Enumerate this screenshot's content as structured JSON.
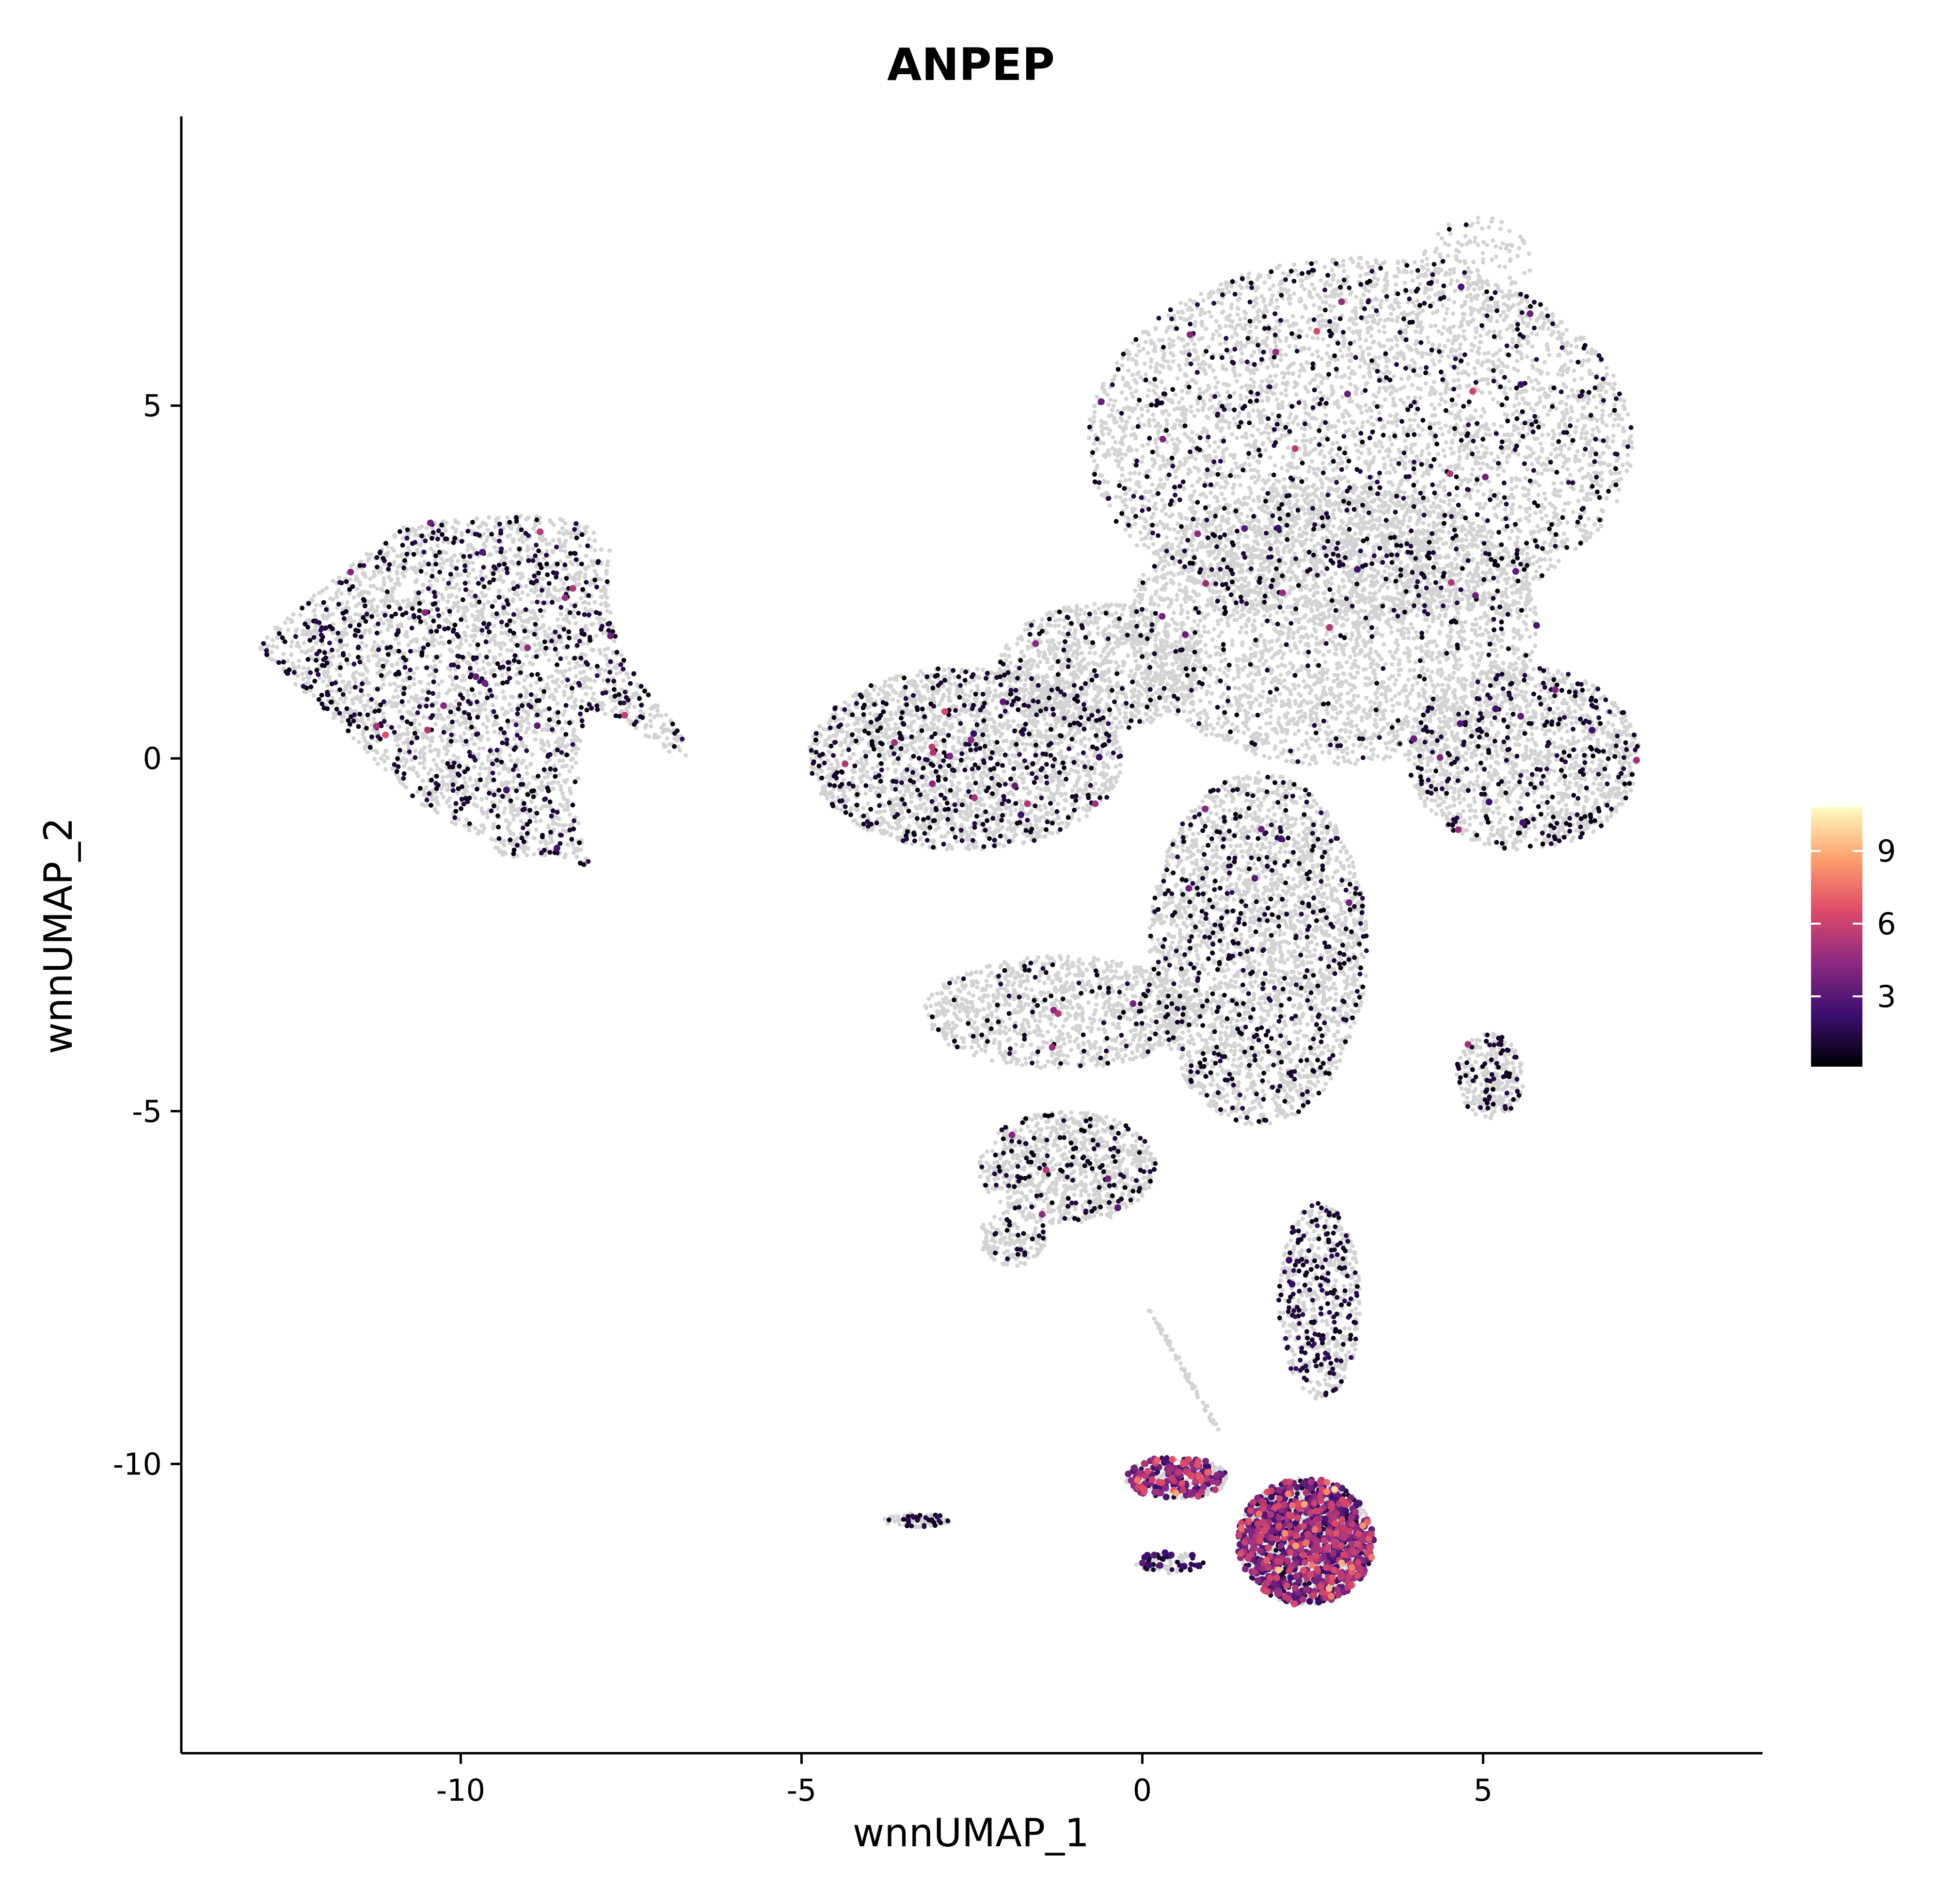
{
  "chart_data": {
    "type": "scatter",
    "title": "ANPEP",
    "xlabel": "wnnUMAP_1",
    "ylabel": "wnnUMAP_2",
    "xlim": [
      -14.1,
      9.1
    ],
    "ylim": [
      -14.1,
      9.1
    ],
    "x_ticks": [
      -10,
      -5,
      0,
      5
    ],
    "y_ticks": [
      -10,
      -5,
      0,
      5
    ],
    "x_tick_labels": [
      "-10",
      "-5",
      "0",
      "5"
    ],
    "y_tick_labels": [
      "-10",
      "-5",
      "0",
      "5"
    ],
    "grid": false,
    "background_color": "#d3d3d3",
    "colorbar": {
      "placement": "right",
      "ticks": [
        3,
        6,
        9
      ],
      "tick_labels": [
        "3",
        "6",
        "9"
      ],
      "range": [
        0.1,
        10.8
      ],
      "colors": [
        "#000004",
        "#3b0f70",
        "#8c2981",
        "#de4968",
        "#fe9f6d",
        "#fcfdbf"
      ]
    },
    "clusters": [
      {
        "name": "left-island",
        "shape": "polygon",
        "polygon": [
          [
            -13.0,
            1.6
          ],
          [
            -12.2,
            2.3
          ],
          [
            -11.4,
            2.9
          ],
          [
            -10.8,
            3.3
          ],
          [
            -10.0,
            3.4
          ],
          [
            -9.0,
            3.45
          ],
          [
            -8.2,
            3.35
          ],
          [
            -7.8,
            3.0
          ],
          [
            -7.85,
            2.3
          ],
          [
            -7.7,
            1.6
          ],
          [
            -7.3,
            1.0
          ],
          [
            -6.8,
            0.4
          ],
          [
            -6.5,
            -0.1
          ],
          [
            -7.0,
            0.1
          ],
          [
            -7.7,
            0.6
          ],
          [
            -8.2,
            0.6
          ],
          [
            -8.3,
            -0.7
          ],
          [
            -8.2,
            -1.3
          ],
          [
            -8.0,
            -1.6
          ],
          [
            -8.6,
            -1.4
          ],
          [
            -9.4,
            -1.4
          ],
          [
            -9.7,
            -1.1
          ],
          [
            -10.4,
            -0.8
          ],
          [
            -11.2,
            -0.1
          ],
          [
            -11.8,
            0.5
          ],
          [
            -12.6,
            1.2
          ]
        ],
        "count": 2600,
        "expressed_count": 720,
        "expr_mean": 1.0
      },
      {
        "name": "right-top-mass",
        "shape": "ellipse",
        "cx": 3.2,
        "cy": 4.5,
        "rx": 4.0,
        "ry": 2.6,
        "count": 4200,
        "expressed_count": 600,
        "expr_mean": 0.9
      },
      {
        "name": "top-peak",
        "shape": "ellipse",
        "cx": 4.9,
        "cy": 7.0,
        "rx": 0.8,
        "ry": 0.7,
        "count": 120,
        "expressed_count": 8,
        "expr_mean": 0.9
      },
      {
        "name": "upper-body",
        "shape": "ellipse",
        "cx": 2.8,
        "cy": 1.9,
        "rx": 3.0,
        "ry": 2.0,
        "count": 3000,
        "expressed_count": 200,
        "expr_mean": 0.8
      },
      {
        "name": "right-lobe",
        "shape": "ellipse",
        "cx": 5.6,
        "cy": 0.0,
        "rx": 1.7,
        "ry": 1.3,
        "count": 1300,
        "expressed_count": 260,
        "expr_mean": 0.9
      },
      {
        "name": "left-wing",
        "shape": "ellipse",
        "cx": -2.6,
        "cy": 0.0,
        "rx": 2.3,
        "ry": 1.3,
        "count": 2000,
        "expressed_count": 420,
        "expr_mean": 0.9
      },
      {
        "name": "bridge",
        "shape": "ellipse",
        "cx": -0.6,
        "cy": 1.3,
        "rx": 1.5,
        "ry": 0.9,
        "count": 900,
        "expressed_count": 80,
        "expr_mean": 0.8
      },
      {
        "name": "center-stem",
        "shape": "ellipse",
        "cx": 1.7,
        "cy": -2.7,
        "rx": 1.6,
        "ry": 2.5,
        "count": 2500,
        "expressed_count": 420,
        "expr_mean": 0.9
      },
      {
        "name": "left-stalk-upper",
        "shape": "ellipse",
        "cx": -1.2,
        "cy": -3.6,
        "rx": 2.0,
        "ry": 0.8,
        "count": 1000,
        "expressed_count": 90,
        "expr_mean": 0.8
      },
      {
        "name": "left-stalk-lower",
        "shape": "ellipse",
        "cx": -1.1,
        "cy": -5.8,
        "rx": 1.3,
        "ry": 0.8,
        "count": 800,
        "expressed_count": 130,
        "expr_mean": 0.8
      },
      {
        "name": "stalk-tip",
        "shape": "ellipse",
        "cx": -1.9,
        "cy": -6.8,
        "rx": 0.5,
        "ry": 0.4,
        "count": 150,
        "expressed_count": 20,
        "expr_mean": 0.8
      },
      {
        "name": "small-right-cluster",
        "shape": "ellipse",
        "cx": 5.1,
        "cy": -4.5,
        "rx": 0.5,
        "ry": 0.6,
        "count": 250,
        "expressed_count": 60,
        "expr_mean": 0.9
      },
      {
        "name": "lower-stem",
        "shape": "ellipse",
        "cx": 2.6,
        "cy": -7.7,
        "rx": 0.6,
        "ry": 1.4,
        "count": 500,
        "expressed_count": 180,
        "expr_mean": 1.2
      },
      {
        "name": "bottom-cluster",
        "shape": "ellipse",
        "cx": 2.4,
        "cy": -11.1,
        "rx": 1.0,
        "ry": 0.9,
        "count": 1300,
        "expressed_count": 1000,
        "expr_mean": 3.0
      },
      {
        "name": "bottom-left-arm",
        "shape": "ellipse",
        "cx": 0.5,
        "cy": -10.2,
        "rx": 0.75,
        "ry": 0.3,
        "count": 250,
        "expressed_count": 180,
        "expr_mean": 3.2
      },
      {
        "name": "bottom-thin-arm",
        "shape": "ellipse",
        "cx": 0.4,
        "cy": -11.4,
        "rx": 0.5,
        "ry": 0.15,
        "count": 60,
        "expressed_count": 40,
        "expr_mean": 2.0
      },
      {
        "name": "small-streak",
        "shape": "ellipse",
        "cx": -3.3,
        "cy": -10.8,
        "rx": 0.5,
        "ry": 0.1,
        "count": 70,
        "expressed_count": 30,
        "expr_mean": 1.0
      },
      {
        "name": "thin-line",
        "shape": "line",
        "from": [
          0.1,
          -7.8
        ],
        "to": [
          1.1,
          -9.5
        ],
        "count": 60,
        "expressed_count": 0,
        "expr_mean": 0.0
      }
    ]
  }
}
